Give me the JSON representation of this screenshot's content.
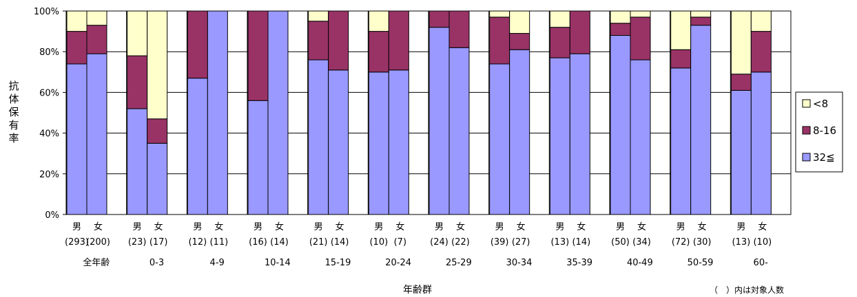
{
  "chart_data": {
    "type": "bar",
    "stacked": true,
    "ylabel": "抗体保有率",
    "xlabel": "年齢群",
    "note": "（　）内は対象人数",
    "ylim": [
      0,
      100
    ],
    "yticks": [
      "0%",
      "20%",
      "40%",
      "60%",
      "80%",
      "100%"
    ],
    "grid": true,
    "legend_position": "right",
    "colors": {
      "<8": "#ffffcc",
      "8-16": "#993366",
      "32≦": "#9999ff"
    },
    "series_order": [
      "32≦",
      "8-16",
      "<8"
    ],
    "groups": [
      {
        "label": "全年齢",
        "bars": [
          {
            "sex": "男",
            "n": "(293)",
            "vals": [
              74,
              16,
              10
            ]
          },
          {
            "sex": "女",
            "n": "(200)",
            "vals": [
              79,
              14,
              7
            ]
          }
        ]
      },
      {
        "label": "0-3",
        "bars": [
          {
            "sex": "男",
            "n": "(23)",
            "vals": [
              52,
              26,
              22
            ]
          },
          {
            "sex": "女",
            "n": "(17)",
            "vals": [
              35,
              12,
              53
            ]
          }
        ]
      },
      {
        "label": "4-9",
        "bars": [
          {
            "sex": "男",
            "n": "(12)",
            "vals": [
              67,
              33,
              0
            ]
          },
          {
            "sex": "女",
            "n": "(11)",
            "vals": [
              100,
              0,
              0
            ]
          }
        ]
      },
      {
        "label": "10-14",
        "bars": [
          {
            "sex": "男",
            "n": "(16)",
            "vals": [
              56,
              44,
              0
            ]
          },
          {
            "sex": "女",
            "n": "(14)",
            "vals": [
              100,
              0,
              0
            ]
          }
        ]
      },
      {
        "label": "15-19",
        "bars": [
          {
            "sex": "男",
            "n": "(21)",
            "vals": [
              76,
              19,
              5
            ]
          },
          {
            "sex": "女",
            "n": "(14)",
            "vals": [
              71,
              29,
              0
            ]
          }
        ]
      },
      {
        "label": "20-24",
        "bars": [
          {
            "sex": "男",
            "n": "(10)",
            "vals": [
              70,
              20,
              10
            ]
          },
          {
            "sex": "女",
            "n": "(7)",
            "vals": [
              71,
              29,
              0
            ]
          }
        ]
      },
      {
        "label": "25-29",
        "bars": [
          {
            "sex": "男",
            "n": "(24)",
            "vals": [
              92,
              8,
              0
            ]
          },
          {
            "sex": "女",
            "n": "(22)",
            "vals": [
              82,
              18,
              0
            ]
          }
        ]
      },
      {
        "label": "30-34",
        "bars": [
          {
            "sex": "男",
            "n": "(39)",
            "vals": [
              74,
              23,
              3
            ]
          },
          {
            "sex": "女",
            "n": "(27)",
            "vals": [
              81,
              8,
              11
            ]
          }
        ]
      },
      {
        "label": "35-39",
        "bars": [
          {
            "sex": "男",
            "n": "(13)",
            "vals": [
              77,
              15,
              8
            ]
          },
          {
            "sex": "女",
            "n": "(14)",
            "vals": [
              79,
              21,
              0
            ]
          }
        ]
      },
      {
        "label": "40-49",
        "bars": [
          {
            "sex": "男",
            "n": "(50)",
            "vals": [
              88,
              6,
              6
            ]
          },
          {
            "sex": "女",
            "n": "(34)",
            "vals": [
              76,
              21,
              3
            ]
          }
        ]
      },
      {
        "label": "50-59",
        "bars": [
          {
            "sex": "男",
            "n": "(72)",
            "vals": [
              72,
              9,
              19
            ]
          },
          {
            "sex": "女",
            "n": "(30)",
            "vals": [
              93,
              4,
              3
            ]
          }
        ]
      },
      {
        "label": "60-",
        "bars": [
          {
            "sex": "男",
            "n": "(13)",
            "vals": [
              61,
              8,
              31
            ]
          },
          {
            "sex": "女",
            "n": "(10)",
            "vals": [
              70,
              20,
              10
            ]
          }
        ]
      }
    ],
    "legend": [
      "<8",
      "8-16",
      "32≦"
    ]
  }
}
